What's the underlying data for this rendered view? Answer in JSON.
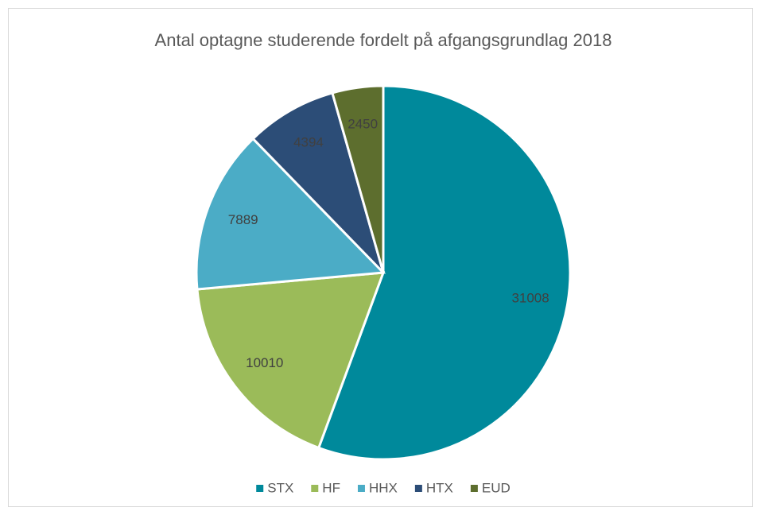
{
  "chart_data": {
    "type": "pie",
    "title": "Antal optagne studerende fordelt på afgangsgrundlag 2018",
    "categories": [
      "STX",
      "HF",
      "HHX",
      "HTX",
      "EUD"
    ],
    "values": [
      31008,
      10010,
      7889,
      4394,
      2450
    ],
    "colors": [
      "#00899b",
      "#9bbb59",
      "#4bacc6",
      "#2c4d77",
      "#5d6e2e"
    ],
    "legend": "bottom"
  }
}
